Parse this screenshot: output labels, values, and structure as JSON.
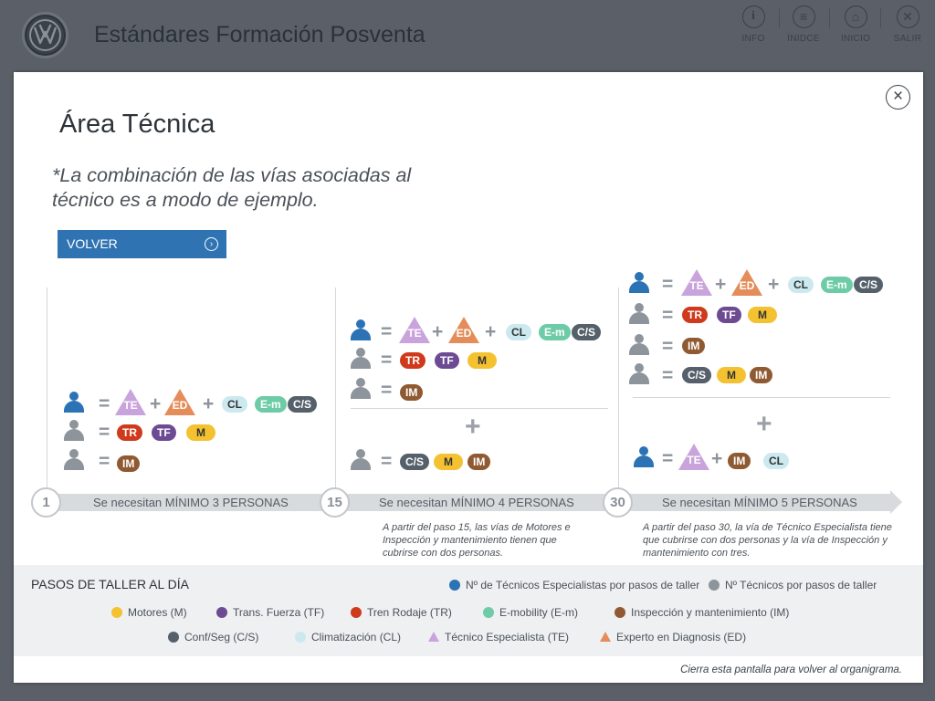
{
  "header": {
    "app_title": "Estándares Formación Posventa",
    "nav": [
      {
        "label": "INFO",
        "icon": "info-icon"
      },
      {
        "label": "ÍNIDCE",
        "icon": "list-icon"
      },
      {
        "label": "INICIO",
        "icon": "home-icon"
      },
      {
        "label": "SALIR",
        "icon": "close-icon"
      }
    ]
  },
  "modal": {
    "title": "Área Técnica",
    "note": "*La combinación de las vías asociadas al técnico es a modo de ejemplo.",
    "back_button": "VOLVER",
    "close_icon": "close-icon"
  },
  "badges": {
    "te": "TE",
    "ed": "ED",
    "cl": "CL",
    "em": "E-m",
    "cs": "C/S",
    "tr": "TR",
    "tf": "TF",
    "m": "M",
    "im": "IM",
    "eq": "=",
    "plus": "+"
  },
  "steps": [
    {
      "number": "1",
      "label": "Se necesitan MÍNIMO 3 PERSONAS",
      "note": ""
    },
    {
      "number": "15",
      "label": "Se necesitan MÍNIMO 4 PERSONAS",
      "note": "A partir del paso 15, las vías de Motores e Inspección y mantenimiento tienen que cubrirse con dos personas."
    },
    {
      "number": "30",
      "label": "Se necesitan MÍNIMO 5 PERSONAS",
      "note": "A partir del paso 30, la vía de Técnico Especialista tiene que cubrirse con dos personas y la vía de Inspección y mantenimiento con tres."
    }
  ],
  "legend": {
    "title": "PASOS DE TALLER AL DÍA",
    "items": [
      {
        "label": "Nº de Técnicos Especialistas por pasos de taller",
        "color": "#2b73b5"
      },
      {
        "label": "Nº Técnicos por pasos de taller",
        "color": "#8e949b"
      },
      {
        "label": "Motores (M)",
        "color": "#f4c230"
      },
      {
        "label": "Trans. Fuerza (TF)",
        "color": "#6d4b93"
      },
      {
        "label": "Tren Rodaje (TR)",
        "color": "#cf3a1c"
      },
      {
        "label": "E-mobility (E-m)",
        "color": "#6dcca7"
      },
      {
        "label": "Inspección y mantenimiento (IM)",
        "color": "#8f5a32"
      },
      {
        "label": "Conf/Seg (C/S)",
        "color": "#55606a"
      },
      {
        "label": "Climatización (CL)",
        "color": "#cce9ef"
      },
      {
        "label": "Técnico Especialista (TE)",
        "color": "#c9a3dc"
      },
      {
        "label": "Experto en Diagnosis (ED)",
        "color": "#e58d5a"
      }
    ]
  },
  "footer_note": "Cierra esta pantalla para volver al organigrama."
}
